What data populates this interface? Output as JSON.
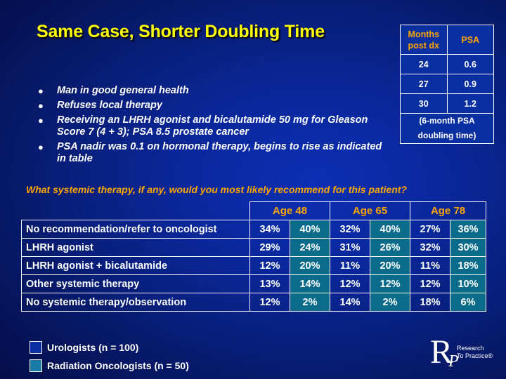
{
  "title": "Same Case, Shorter Doubling Time",
  "psa_table": {
    "header_months": "Months post dx",
    "header_psa": "PSA",
    "rows": [
      {
        "months": "24",
        "psa": "0.6"
      },
      {
        "months": "27",
        "psa": "0.9"
      },
      {
        "months": "30",
        "psa": "1.2"
      }
    ],
    "note_line1": "(6-month PSA",
    "note_line2": "doubling time)"
  },
  "bullets": [
    "Man in good general health",
    "Refuses local therapy",
    "Receiving an LHRH agonist and bicalutamide 50 mg for Gleason Score 7 (4 + 3); PSA 8.5 prostate cancer",
    "PSA nadir was 0.1 on hormonal therapy, begins to rise as indicated in table"
  ],
  "bullet_glyph": "●",
  "question": "What systemic therapy, if any, would you most likely recommend for this patient?",
  "results": {
    "age_groups": [
      "Age 48",
      "Age 65",
      "Age 78"
    ],
    "rows": [
      {
        "label": "No recommendation/refer to oncologist",
        "values": [
          "34%",
          "40%",
          "32%",
          "40%",
          "27%",
          "36%"
        ]
      },
      {
        "label": "LHRH agonist",
        "values": [
          "29%",
          "24%",
          "31%",
          "26%",
          "32%",
          "30%"
        ]
      },
      {
        "label": "LHRH agonist + bicalutamide",
        "values": [
          "12%",
          "20%",
          "11%",
          "20%",
          "11%",
          "18%"
        ]
      },
      {
        "label": "Other systemic therapy",
        "values": [
          "13%",
          "14%",
          "12%",
          "12%",
          "12%",
          "10%"
        ]
      },
      {
        "label": "No systemic therapy/observation",
        "values": [
          "12%",
          "2%",
          "14%",
          "2%",
          "18%",
          "6%"
        ]
      }
    ]
  },
  "legend": {
    "urologists": "Urologists  (n = 100)",
    "radiation_oncologists": "Radiation Oncologists  (n = 50)"
  },
  "logo": {
    "letters": "R",
    "sub_letter": "P",
    "tag_line1": "Research",
    "tag_line2": "To Practice®"
  },
  "colors": {
    "title": "#ffff00",
    "accent": "#ffa500",
    "rad_onc_cell": "#0a6b8a",
    "background": "#0a2798"
  }
}
